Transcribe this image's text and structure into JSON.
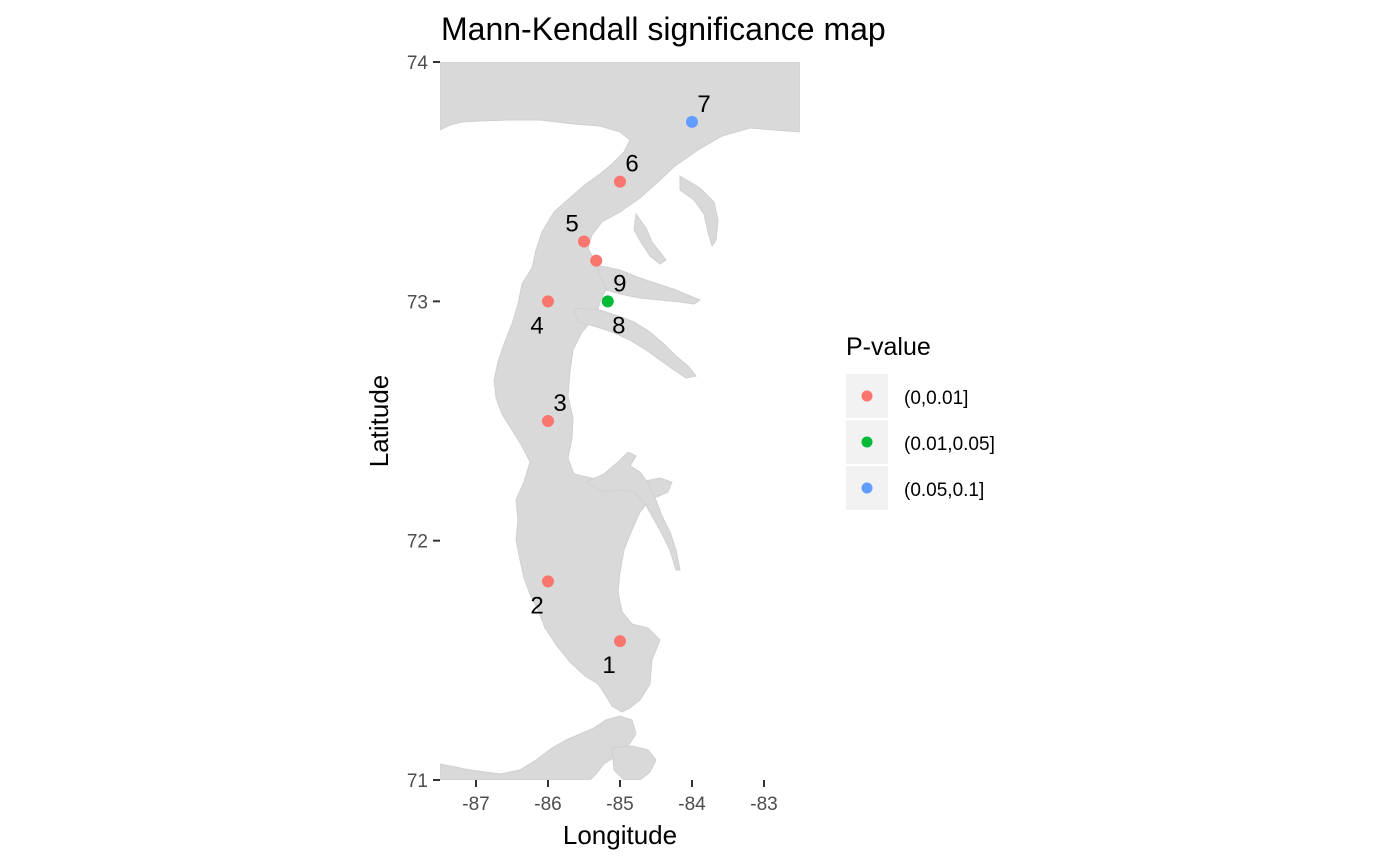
{
  "chart_data": {
    "type": "scatter",
    "title": "Mann-Kendall significance map",
    "xlabel": "Longitude",
    "ylabel": "Latitude",
    "xlim": [
      -87.5,
      -82.5
    ],
    "ylim": [
      71,
      74
    ],
    "x_ticks": [
      -87,
      -86,
      -85,
      -84,
      -83
    ],
    "x_tick_labels": [
      "-87",
      "-86",
      "-85",
      "-84",
      "-83"
    ],
    "y_ticks": [
      71,
      72,
      73,
      74
    ],
    "y_tick_labels": [
      "71",
      "72",
      "73",
      "74"
    ],
    "grid": false,
    "basemap": "grey land polygon",
    "legend": {
      "title": "P-value",
      "placement": "right",
      "entries": [
        {
          "label": "(0,0.01]",
          "color": "#F8766D"
        },
        {
          "label": "(0.01,0.05]",
          "color": "#00BA38"
        },
        {
          "label": "(0.05,0.1]",
          "color": "#619CFF"
        }
      ]
    },
    "points": [
      {
        "label": "1",
        "x": -85.0,
        "y": 71.58,
        "class": "(0,0.01]",
        "label_pos": "below-left"
      },
      {
        "label": "2",
        "x": -86.0,
        "y": 71.83,
        "class": "(0,0.01]",
        "label_pos": "below-left"
      },
      {
        "label": "3",
        "x": -86.0,
        "y": 72.5,
        "class": "(0,0.01]",
        "label_pos": "above-right"
      },
      {
        "label": "4",
        "x": -86.0,
        "y": 73.0,
        "class": "(0,0.01]",
        "label_pos": "below-left"
      },
      {
        "label": "5",
        "x": -85.5,
        "y": 73.25,
        "class": "(0,0.01]",
        "label_pos": "above-left"
      },
      {
        "label": "",
        "x": -85.33,
        "y": 73.17,
        "class": "(0,0.01]",
        "label_pos": "none"
      },
      {
        "label": "6",
        "x": -85.0,
        "y": 73.5,
        "class": "(0,0.01]",
        "label_pos": "above-right"
      },
      {
        "label": "7",
        "x": -84.0,
        "y": 73.75,
        "class": "(0.05,0.1]",
        "label_pos": "above-right"
      },
      {
        "label": "9",
        "x": -85.17,
        "y": 73.0,
        "class": "(0.01,0.05]",
        "label_pos": "above-right"
      },
      {
        "label": "8",
        "x": -85.17,
        "y": 73.0,
        "class": "(0.01,0.05]",
        "label_pos": "below-right"
      }
    ]
  }
}
